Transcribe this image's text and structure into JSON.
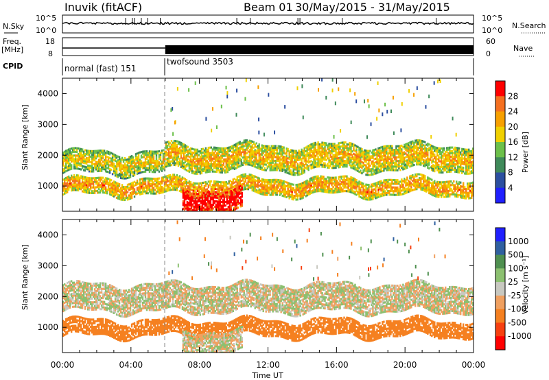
{
  "header": {
    "station": "Inuvik (fitACF)",
    "beam": "Beam 01",
    "dates": "30/May/2015 - 31/May/2015"
  },
  "noise_panel": {
    "left_label": "N.Sky",
    "right_label": "N.Search",
    "left_ticks": [
      "10^5",
      "10^0"
    ],
    "right_ticks": [
      "10^5",
      "10^0"
    ]
  },
  "freq_panel": {
    "left_label_1": "Freq.",
    "left_label_2": "[MHz]",
    "right_label": "Nave",
    "left_ticks": [
      "18",
      "8"
    ],
    "right_ticks": [
      "60",
      "0"
    ]
  },
  "cpid": {
    "label": "CPID",
    "modes": [
      {
        "name": "normal (fast) 151",
        "start": "00:00",
        "end": "06:00"
      },
      {
        "name": "twofsound 3503",
        "start": "06:00",
        "end": "00:00"
      }
    ]
  },
  "colors": {
    "power": [
      "#2020ff",
      "#2c4fa0",
      "#3f8a5a",
      "#6cc04a",
      "#f0d000",
      "#f7a000",
      "#f57020",
      "#ff0000"
    ],
    "velocity": [
      "#ff0000",
      "#f74010",
      "#f58020",
      "#f0a060",
      "#c8c8c0",
      "#8cc070",
      "#4f9050",
      "#3060a0",
      "#2020ff"
    ]
  },
  "chart_data": [
    {
      "type": "heatmap",
      "name": "power",
      "xlabel": "Time UT",
      "ylabel": "Slant Range [km]",
      "x_range": [
        "00:00",
        "00:00"
      ],
      "ylim": [
        180,
        4500
      ],
      "x_ticks": [
        "00:00",
        "04:00",
        "08:00",
        "12:00",
        "16:00",
        "20:00",
        "00:00"
      ],
      "y_ticks": [
        1000,
        2000,
        3000,
        4000
      ],
      "colorbar": {
        "label": "Power [dB]",
        "ticks": [
          4,
          8,
          12,
          16,
          20,
          24,
          28
        ],
        "range": [
          0,
          32
        ]
      },
      "bands": [
        {
          "t_start": 0.0,
          "t_end": 6.0,
          "r_low": 1400,
          "r_high": 2100,
          "level": 16
        },
        {
          "t_start": 6.0,
          "t_end": 24.0,
          "r_low": 1500,
          "r_high": 2300,
          "level": 18
        },
        {
          "t_start": 0.0,
          "t_end": 24.0,
          "r_low": 700,
          "r_high": 1200,
          "level": 20
        },
        {
          "t_start": 7.0,
          "t_end": 10.5,
          "r_low": 180,
          "r_high": 900,
          "level": 30
        }
      ]
    },
    {
      "type": "heatmap",
      "name": "velocity",
      "xlabel": "Time UT",
      "ylabel": "Slant Range [km]",
      "x_range": [
        "00:00",
        "00:00"
      ],
      "ylim": [
        180,
        4500
      ],
      "x_ticks": [
        "00:00",
        "04:00",
        "08:00",
        "12:00",
        "16:00",
        "20:00",
        "00:00"
      ],
      "y_ticks": [
        1000,
        2000,
        3000,
        4000
      ],
      "colorbar": {
        "label": "Velocity [m s⁻¹]",
        "ticks": [
          1000,
          500,
          100,
          25,
          -25,
          -100,
          -500,
          -1000
        ]
      },
      "bands": [
        {
          "t_start": 0.0,
          "t_end": 24.0,
          "r_low": 1500,
          "r_high": 2400,
          "level": 0
        },
        {
          "t_start": 0.0,
          "t_end": 24.0,
          "r_low": 700,
          "r_high": 1200,
          "level": -200
        },
        {
          "t_start": 7.0,
          "t_end": 10.5,
          "r_low": 180,
          "r_high": 900,
          "level": 0
        }
      ]
    }
  ]
}
